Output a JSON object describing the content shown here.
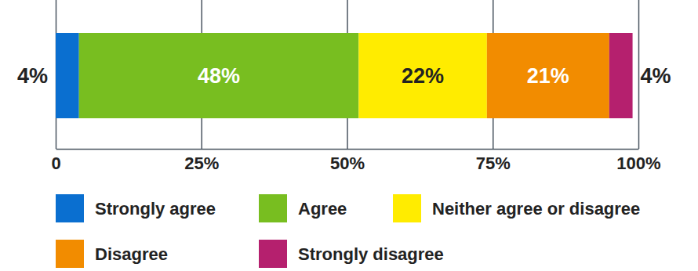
{
  "chart_data": {
    "type": "bar",
    "orientation": "horizontal",
    "stacked": true,
    "data_labels": true,
    "legend": "bottom",
    "xlim": [
      0,
      100
    ],
    "xticks": [
      0,
      {
        "value": 25,
        "label": "25%"
      },
      {
        "value": 50,
        "label": "50%"
      },
      {
        "value": 75,
        "label": "75%"
      },
      {
        "value": 100,
        "label": "100%"
      }
    ],
    "series": [
      {
        "name": "Strongly agree",
        "color": "#0a6fd0",
        "values": [
          4
        ],
        "value_labels": [
          "4%"
        ]
      },
      {
        "name": "Agree",
        "color": "#78be20",
        "values": [
          48
        ],
        "value_labels": [
          "48%"
        ]
      },
      {
        "name": "Neither agree or disagree",
        "color": "#ffec00",
        "values": [
          22
        ],
        "value_labels": [
          "22%"
        ]
      },
      {
        "name": "Disagree",
        "color": "#f28c00",
        "values": [
          21
        ],
        "value_labels": [
          "21%"
        ]
      },
      {
        "name": "Strongly disagree",
        "color": "#b5206e",
        "values": [
          4
        ],
        "value_labels": [
          "4%"
        ]
      }
    ]
  }
}
